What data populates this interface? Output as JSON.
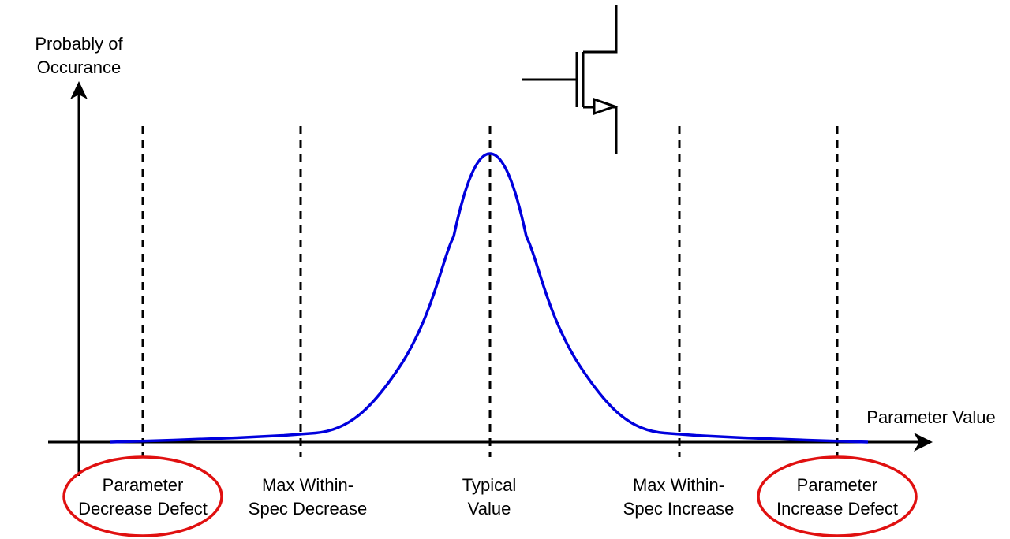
{
  "axes": {
    "y_label": [
      "Probably of",
      "Occurance"
    ],
    "x_label": "Parameter Value"
  },
  "markers": [
    {
      "id": "param-decrease-defect",
      "lines": [
        "Parameter",
        "Decrease Defect"
      ],
      "circled": true
    },
    {
      "id": "max-within-spec-decrease",
      "lines": [
        "Max Within-",
        "Spec Decrease"
      ],
      "circled": false
    },
    {
      "id": "typical-value",
      "lines": [
        "Typical",
        "Value"
      ],
      "circled": false
    },
    {
      "id": "max-within-spec-increase",
      "lines": [
        "Max Within-",
        "Spec Increase"
      ],
      "circled": false
    },
    {
      "id": "param-increase-defect",
      "lines": [
        "Parameter",
        "Increase Defect"
      ],
      "circled": true
    }
  ],
  "colors": {
    "curve": "#0000dd",
    "highlight": "#e01010",
    "axis": "#000000"
  },
  "icon": "mosfet-transistor-icon"
}
